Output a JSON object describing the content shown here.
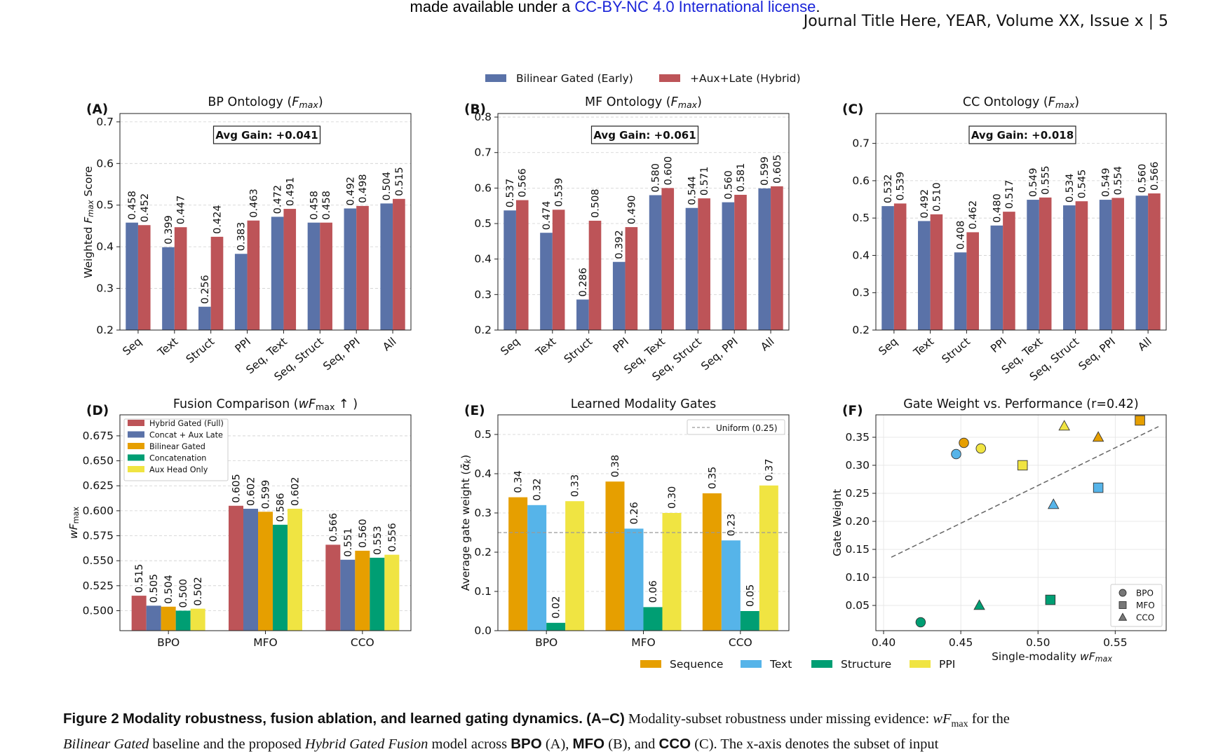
{
  "header": {
    "notice_prefix": "made available under a ",
    "notice_link": "CC-BY-NC 4.0 International license",
    "notice_suffix": ".",
    "journal": "Journal Title Here, YEAR, Volume XX, Issue x | 5"
  },
  "caption": {
    "label": "Figure 2",
    "title": "Modality robustness, fusion ablation, and learned gating dynamics.",
    "panels": "(A–C)",
    "text1": "Modality-subset robustness under missing evidence: ",
    "metric": "wF",
    "metric_sub": "max",
    "text2": " for the",
    "line2_a": "Bilinear Gated",
    "line2_b": " baseline and the proposed ",
    "line2_c": "Hybrid Gated Fusion",
    "line2_d": " model across ",
    "bpo": "BPO",
    "bpo_p": " (A), ",
    "mfo": "MFO",
    "mfo_p": " (B), and ",
    "cco": "CCO",
    "cco_p": " (C). The x-axis denotes the subset of input"
  },
  "top_legend": {
    "series": [
      {
        "name": "Bilinear Gated (Early)",
        "color": "#5a72a8"
      },
      {
        "name": "+Aux+Late (Hybrid)",
        "color": "#bd5458"
      }
    ]
  },
  "chart_data": [
    {
      "panel": "(A)",
      "type": "bar",
      "title": "BP Ontology (",
      "title_var": "F",
      "title_sub": "max",
      "title_end": ")",
      "ylabel": "Weighted ",
      "ylabel_var": "F",
      "ylabel_sub": "max",
      "ylabel_end": " Score",
      "badge": "Avg Gain: +0.041",
      "ylim": [
        0.2,
        0.72
      ],
      "yticks": [
        "0.2",
        "0.3",
        "0.4",
        "0.5",
        "0.6",
        "0.7"
      ],
      "categories": [
        "Seq",
        "Text",
        "Struct",
        "PPI",
        "Seq, Text",
        "Seq, Struct",
        "Seq, PPI",
        "All"
      ],
      "series": [
        {
          "name": "Bilinear Gated (Early)",
          "values": [
            0.458,
            0.399,
            0.256,
            0.383,
            0.472,
            0.458,
            0.492,
            0.504
          ],
          "labels": [
            "0.458",
            "0.399",
            "0.256",
            "0.383",
            "0.472",
            "0.458",
            "0.492",
            "0.504"
          ]
        },
        {
          "name": "+Aux+Late (Hybrid)",
          "values": [
            0.452,
            0.447,
            0.424,
            0.463,
            0.491,
            0.458,
            0.498,
            0.515
          ],
          "labels": [
            "0.452",
            "0.447",
            "0.424",
            "0.463",
            "0.491",
            "0.458",
            "0.498",
            "0.515"
          ]
        }
      ]
    },
    {
      "panel": "(B)",
      "type": "bar",
      "title": "MF Ontology (",
      "title_var": "F",
      "title_sub": "max",
      "title_end": ")",
      "badge": "Avg Gain: +0.061",
      "ylim": [
        0.2,
        0.81
      ],
      "yticks": [
        "0.2",
        "0.3",
        "0.4",
        "0.5",
        "0.6",
        "0.7",
        "0.8"
      ],
      "categories": [
        "Seq",
        "Text",
        "Struct",
        "PPI",
        "Seq, Text",
        "Seq, Struct",
        "Seq, PPI",
        "All"
      ],
      "series": [
        {
          "name": "Bilinear Gated (Early)",
          "values": [
            0.537,
            0.474,
            0.286,
            0.392,
            0.58,
            0.544,
            0.56,
            0.599
          ],
          "labels": [
            "0.537",
            "0.474",
            "0.286",
            "0.392",
            "0.580",
            "0.544",
            "0.560",
            "0.599"
          ]
        },
        {
          "name": "+Aux+Late (Hybrid)",
          "values": [
            0.566,
            0.539,
            0.508,
            0.49,
            0.6,
            0.571,
            0.581,
            0.605
          ],
          "labels": [
            "0.566",
            "0.539",
            "0.508",
            "0.490",
            "0.600",
            "0.571",
            "0.581",
            "0.605"
          ]
        }
      ]
    },
    {
      "panel": "(C)",
      "type": "bar",
      "title": "CC Ontology (",
      "title_var": "F",
      "title_sub": "max",
      "title_end": ")",
      "badge": "Avg Gain: +0.018",
      "ylim": [
        0.2,
        0.78
      ],
      "yticks": [
        "0.2",
        "0.3",
        "0.4",
        "0.5",
        "0.6",
        "0.7"
      ],
      "categories": [
        "Seq",
        "Text",
        "Struct",
        "PPI",
        "Seq, Text",
        "Seq, Struct",
        "Seq, PPI",
        "All"
      ],
      "series": [
        {
          "name": "Bilinear Gated (Early)",
          "values": [
            0.532,
            0.492,
            0.408,
            0.48,
            0.549,
            0.534,
            0.549,
            0.56
          ],
          "labels": [
            "0.532",
            "0.492",
            "0.408",
            "0.480",
            "0.549",
            "0.534",
            "0.549",
            "0.560"
          ]
        },
        {
          "name": "+Aux+Late (Hybrid)",
          "values": [
            0.539,
            0.51,
            0.462,
            0.517,
            0.555,
            0.545,
            0.554,
            0.566
          ],
          "labels": [
            "0.539",
            "0.510",
            "0.462",
            "0.517",
            "0.555",
            "0.545",
            "0.554",
            "0.566"
          ]
        }
      ]
    },
    {
      "panel": "(D)",
      "type": "bar",
      "title": "Fusion Comparison (",
      "title_var": "wF",
      "title_sub": "max",
      "title_end": " ↑ )",
      "ylabel_var": "wF",
      "ylabel_sub": "max",
      "ylim": [
        0.48,
        0.696
      ],
      "yticks": [
        "0.500",
        "0.525",
        "0.550",
        "0.575",
        "0.600",
        "0.625",
        "0.650",
        "0.675"
      ],
      "categories": [
        "BPO",
        "MFO",
        "CCO"
      ],
      "legend_position": "top-left",
      "series": [
        {
          "name": "Hybrid Gated (Full)",
          "color": "#bd5458",
          "values": [
            0.515,
            0.605,
            0.566
          ],
          "labels": [
            "0.515",
            "0.605",
            "0.566"
          ]
        },
        {
          "name": "Concat + Aux Late",
          "color": "#5a72a8",
          "values": [
            0.505,
            0.602,
            0.551
          ],
          "labels": [
            "0.505",
            "0.602",
            "0.551"
          ]
        },
        {
          "name": "Bilinear Gated",
          "color": "#e69f00",
          "values": [
            0.504,
            0.599,
            0.56
          ],
          "labels": [
            "0.504",
            "0.599",
            "0.560"
          ]
        },
        {
          "name": "Concatenation",
          "color": "#009e73",
          "values": [
            0.5,
            0.586,
            0.553
          ],
          "labels": [
            "0.500",
            "0.586",
            "0.553"
          ]
        },
        {
          "name": "Aux Head Only",
          "color": "#f0e442",
          "values": [
            0.502,
            0.602,
            0.556
          ],
          "labels": [
            "0.502",
            "0.602",
            "0.556"
          ]
        }
      ]
    },
    {
      "panel": "(E)",
      "type": "bar",
      "title": "Learned Modality Gates",
      "ylabel": "Average gate weight (",
      "ylabel_var": "ᾱ",
      "ylabel_sub": "k",
      "ylabel_end": ")",
      "ylim": [
        0,
        0.55
      ],
      "yticks": [
        "0.0",
        "0.1",
        "0.2",
        "0.3",
        "0.4",
        "0.5"
      ],
      "reference_line": {
        "value": 0.25,
        "label": "Uniform (0.25)"
      },
      "categories": [
        "BPO",
        "MFO",
        "CCO"
      ],
      "series": [
        {
          "name": "Sequence",
          "color": "#e69f00",
          "values": [
            0.34,
            0.38,
            0.35
          ],
          "labels": [
            "0.34",
            "0.38",
            "0.35"
          ]
        },
        {
          "name": "Text",
          "color": "#56b4e9",
          "values": [
            0.32,
            0.26,
            0.23
          ],
          "labels": [
            "0.32",
            "0.26",
            "0.23"
          ]
        },
        {
          "name": "Structure",
          "color": "#009e73",
          "values": [
            0.02,
            0.06,
            0.05
          ],
          "labels": [
            "0.02",
            "0.06",
            "0.05"
          ]
        },
        {
          "name": "PPI",
          "color": "#f0e442",
          "values": [
            0.33,
            0.3,
            0.37
          ],
          "labels": [
            "0.33",
            "0.30",
            "0.37"
          ]
        }
      ]
    },
    {
      "panel": "(F)",
      "type": "scatter",
      "title": "Gate Weight vs. Performance (r=0.42)",
      "xlabel": "Single-modality ",
      "xlabel_var": "wF",
      "xlabel_sub": "max",
      "ylabel": "Gate Weight",
      "xlim": [
        0.395,
        0.583
      ],
      "ylim": [
        0.005,
        0.39
      ],
      "xticks": [
        "0.40",
        "0.45",
        "0.50",
        "0.55"
      ],
      "yticks": [
        "0.05",
        "0.10",
        "0.15",
        "0.20",
        "0.25",
        "0.30",
        "0.35"
      ],
      "trend_line": {
        "x": [
          0.405,
          0.578
        ],
        "y": [
          0.136,
          0.369
        ]
      },
      "legend": [
        {
          "name": "BPO",
          "marker": "circle"
        },
        {
          "name": "MFO",
          "marker": "square"
        },
        {
          "name": "CCO",
          "marker": "triangle"
        }
      ],
      "points": [
        {
          "ontology": "BPO",
          "modality": "Sequence",
          "x": 0.452,
          "y": 0.34
        },
        {
          "ontology": "BPO",
          "modality": "Text",
          "x": 0.447,
          "y": 0.32
        },
        {
          "ontology": "BPO",
          "modality": "Structure",
          "x": 0.424,
          "y": 0.02
        },
        {
          "ontology": "BPO",
          "modality": "PPI",
          "x": 0.463,
          "y": 0.33
        },
        {
          "ontology": "MFO",
          "modality": "Sequence",
          "x": 0.566,
          "y": 0.38
        },
        {
          "ontology": "MFO",
          "modality": "Text",
          "x": 0.539,
          "y": 0.26
        },
        {
          "ontology": "MFO",
          "modality": "Structure",
          "x": 0.508,
          "y": 0.06
        },
        {
          "ontology": "MFO",
          "modality": "PPI",
          "x": 0.49,
          "y": 0.3
        },
        {
          "ontology": "CCO",
          "modality": "Sequence",
          "x": 0.539,
          "y": 0.35
        },
        {
          "ontology": "CCO",
          "modality": "Text",
          "x": 0.51,
          "y": 0.23
        },
        {
          "ontology": "CCO",
          "modality": "Structure",
          "x": 0.462,
          "y": 0.05
        },
        {
          "ontology": "CCO",
          "modality": "PPI",
          "x": 0.517,
          "y": 0.37
        }
      ],
      "modality_colors": {
        "Sequence": "#e69f00",
        "Text": "#56b4e9",
        "Structure": "#009e73",
        "PPI": "#f0e442"
      }
    }
  ],
  "bottom_legend": {
    "series": [
      {
        "name": "Sequence",
        "color": "#e69f00"
      },
      {
        "name": "Text",
        "color": "#56b4e9"
      },
      {
        "name": "Structure",
        "color": "#009e73"
      },
      {
        "name": "PPI",
        "color": "#f0e442"
      }
    ]
  }
}
